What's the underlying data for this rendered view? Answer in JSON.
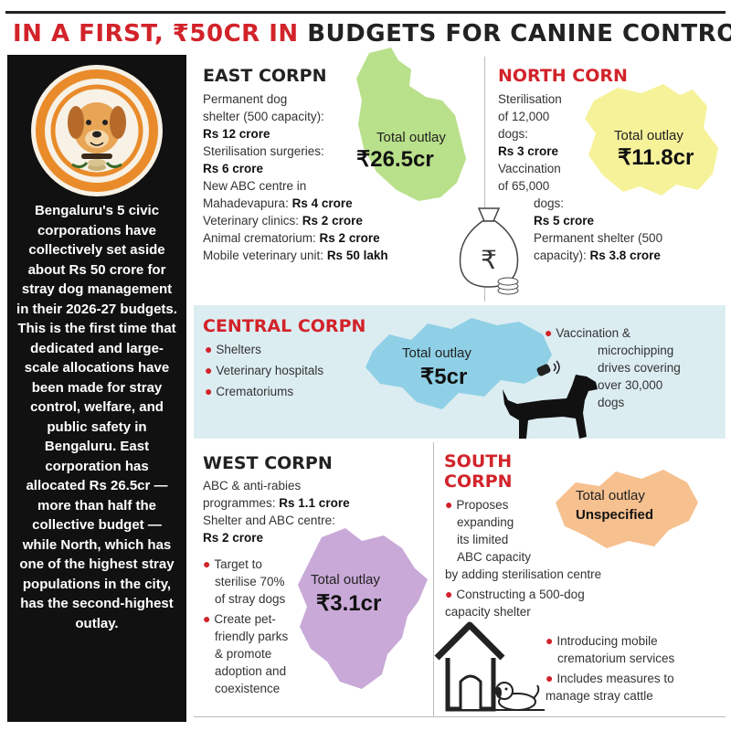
{
  "title": {
    "part1": "IN A FIRST, ₹50CR IN",
    "part2": "BUDGETS FOR CANINE CONTROL"
  },
  "sidebar": {
    "text": "Bengaluru's 5 civic corporations have collectively set aside about Rs 50 crore for stray dog management in their 2026-27 budgets. This is the first time that dedicated and large-scale allocations have been made for stray control, welfare, and public safety in Bengaluru. East corporation has allocated Rs 26.5cr — more than half the collective budget — while North, which has one of the highest stray populations in the city, has the second-highest outlay."
  },
  "east": {
    "heading": "EAST CORPN",
    "l1": "Permanent dog",
    "l2": "shelter (500 capacity):",
    "l3": "Rs 12 crore",
    "l4": "Sterilisation surgeries:",
    "l5": "Rs 6 crore",
    "l6": "New ABC centre in",
    "l7a": "Mahadevapura: ",
    "l7b": "Rs 4 crore",
    "l8a": "Veterinary clinics: ",
    "l8b": "Rs 2 crore",
    "l9a": "Animal crematorium: ",
    "l9b": "Rs 2 crore",
    "l10a": "Mobile veterinary unit: ",
    "l10b": "Rs 50 lakh",
    "outlay_label": "Total outlay",
    "outlay_value": "₹26.5cr"
  },
  "north": {
    "heading": "NORTH CORN",
    "l1": "Sterilisation",
    "l2": "of 12,000",
    "l3": "dogs:",
    "l4": "Rs 3 crore",
    "l5": "Vaccination",
    "l6": "of 65,000",
    "l7": "dogs:",
    "l8": "Rs 5 crore",
    "l9": "Permanent shelter (500",
    "l10a": "capacity): ",
    "l10b": "Rs 3.8 crore",
    "outlay_label": "Total outlay",
    "outlay_value": "₹11.8cr"
  },
  "central": {
    "heading": "CENTRAL CORPN",
    "items": [
      "Shelters",
      "Veterinary hospitals",
      "Crematoriums"
    ],
    "right_lines": [
      "Vaccination &",
      "microchipping",
      "drives covering",
      "over 30,000",
      "dogs"
    ],
    "outlay_label": "Total outlay",
    "outlay_value": "₹5cr"
  },
  "west": {
    "heading": "WEST CORPN",
    "l1": "ABC & anti-rabies",
    "l2a": "programmes: ",
    "l2b": "Rs 1.1 crore",
    "l3": "Shelter and ABC centre:",
    "l4": "Rs 2 crore",
    "b1": [
      "Target to",
      "sterilise 70%",
      "of stray dogs"
    ],
    "b2": [
      "Create pet-",
      "friendly parks",
      "& promote",
      "adoption and",
      "coexistence"
    ],
    "outlay_label": "Total outlay",
    "outlay_value": "₹3.1cr"
  },
  "south": {
    "heading1": "SOUTH",
    "heading2": "CORPN",
    "b1": [
      "Proposes",
      "expanding",
      "its limited",
      "ABC capacity",
      "by adding sterilisation centre"
    ],
    "b2": [
      "Constructing a 500-dog",
      "capacity shelter"
    ],
    "b3": [
      "Introducing mobile",
      "crematorium services"
    ],
    "b4": [
      "Includes measures to",
      "manage stray cattle"
    ],
    "outlay_label": "Total outlay",
    "outlay_value": "Unspecified"
  },
  "colors": {
    "accent_red": "#d2232a",
    "east_map": "#b9e08a",
    "north_map": "#f6f29a",
    "central_map": "#8fd0e6",
    "west_map": "#c9a9d8",
    "south_map": "#f6c08f"
  },
  "icons": [
    "dog-logo-icon",
    "money-bag-icon",
    "rupee-icon",
    "dog-silhouette-icon",
    "microchip-scanner-icon",
    "doghouse-icon"
  ]
}
